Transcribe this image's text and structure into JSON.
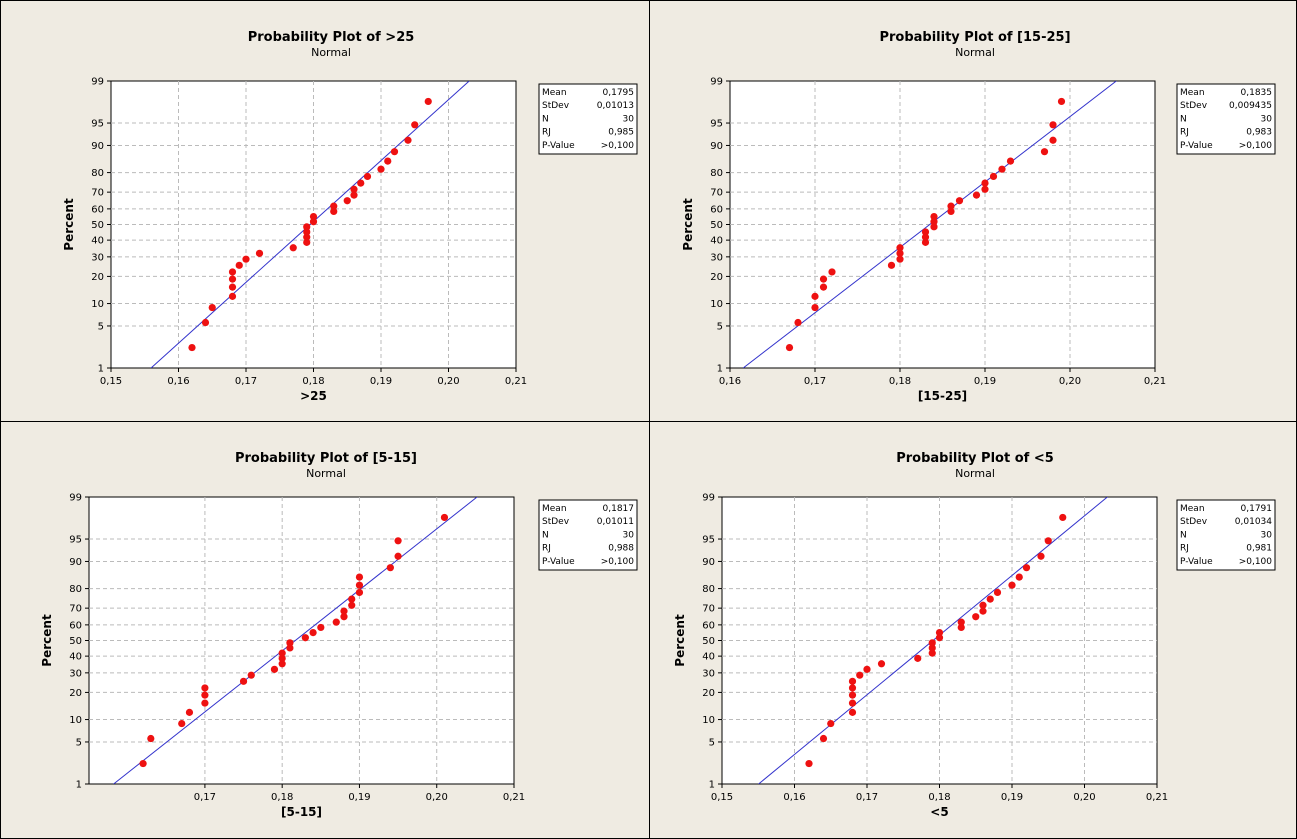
{
  "colors": {
    "panel_bg": "#efebe2",
    "plot_bg": "#ffffff",
    "point": "#ee1111",
    "fit_line": "#3333cc",
    "grid": "#bbbbbb"
  },
  "chart_data": [
    {
      "type": "scatter",
      "title": "Probability Plot of >25",
      "subtitle": "Normal",
      "xlabel": ">25",
      "ylabel": "Percent",
      "xlim": [
        0.15,
        0.21
      ],
      "xticks": [
        "0,15",
        "0,16",
        "0,17",
        "0,18",
        "0,19",
        "0,20",
        "0,21"
      ],
      "yticks": [
        "1",
        "5",
        "10",
        "20",
        "30",
        "40",
        "50",
        "60",
        "70",
        "80",
        "90",
        "95",
        "99"
      ],
      "grid": true,
      "legend_position": "top-right",
      "fit_line": {
        "mean": 0.1795,
        "stdev": 0.01013
      },
      "stats": [
        [
          "Mean",
          "0,1795"
        ],
        [
          "StDev",
          "0,01013"
        ],
        [
          "N",
          "30"
        ],
        [
          "RJ",
          "0,985"
        ],
        [
          "P-Value",
          ">0,100"
        ]
      ],
      "points": [
        [
          0.162,
          2.3
        ],
        [
          0.164,
          5.6
        ],
        [
          0.165,
          8.9
        ],
        [
          0.168,
          12.2
        ],
        [
          0.168,
          15.5
        ],
        [
          0.168,
          18.8
        ],
        [
          0.168,
          22.1
        ],
        [
          0.169,
          25.4
        ],
        [
          0.17,
          28.7
        ],
        [
          0.172,
          32.0
        ],
        [
          0.177,
          35.3
        ],
        [
          0.179,
          38.6
        ],
        [
          0.179,
          41.9
        ],
        [
          0.179,
          45.2
        ],
        [
          0.179,
          48.5
        ],
        [
          0.18,
          51.8
        ],
        [
          0.18,
          55.1
        ],
        [
          0.183,
          58.4
        ],
        [
          0.183,
          61.7
        ],
        [
          0.185,
          65.0
        ],
        [
          0.186,
          68.3
        ],
        [
          0.186,
          71.6
        ],
        [
          0.187,
          74.9
        ],
        [
          0.188,
          78.2
        ],
        [
          0.19,
          81.5
        ],
        [
          0.191,
          84.8
        ],
        [
          0.192,
          88.1
        ],
        [
          0.194,
          91.4
        ],
        [
          0.195,
          94.7
        ],
        [
          0.197,
          97.7
        ]
      ]
    },
    {
      "type": "scatter",
      "title": "Probability Plot of [15-25]",
      "subtitle": "Normal",
      "xlabel": "[15-25]",
      "ylabel": "Percent",
      "xlim": [
        0.16,
        0.21
      ],
      "xticks": [
        "0,16",
        "0,17",
        "0,18",
        "0,19",
        "0,20",
        "0,21"
      ],
      "yticks": [
        "1",
        "5",
        "10",
        "20",
        "30",
        "40",
        "50",
        "60",
        "70",
        "80",
        "90",
        "95",
        "99"
      ],
      "grid": true,
      "legend_position": "top-right",
      "fit_line": {
        "mean": 0.1835,
        "stdev": 0.009435
      },
      "stats": [
        [
          "Mean",
          "0,1835"
        ],
        [
          "StDev",
          "0,009435"
        ],
        [
          "N",
          "30"
        ],
        [
          "RJ",
          "0,983"
        ],
        [
          "P-Value",
          ">0,100"
        ]
      ],
      "points": [
        [
          0.167,
          2.3
        ],
        [
          0.168,
          5.6
        ],
        [
          0.17,
          8.9
        ],
        [
          0.17,
          12.2
        ],
        [
          0.171,
          15.5
        ],
        [
          0.171,
          18.8
        ],
        [
          0.172,
          22.1
        ],
        [
          0.179,
          25.4
        ],
        [
          0.18,
          28.7
        ],
        [
          0.18,
          32.0
        ],
        [
          0.18,
          35.3
        ],
        [
          0.183,
          38.6
        ],
        [
          0.183,
          41.9
        ],
        [
          0.183,
          45.2
        ],
        [
          0.184,
          48.5
        ],
        [
          0.184,
          51.8
        ],
        [
          0.184,
          55.1
        ],
        [
          0.186,
          58.4
        ],
        [
          0.186,
          61.7
        ],
        [
          0.187,
          65.0
        ],
        [
          0.189,
          68.3
        ],
        [
          0.19,
          71.6
        ],
        [
          0.19,
          74.9
        ],
        [
          0.191,
          78.2
        ],
        [
          0.192,
          81.5
        ],
        [
          0.193,
          84.8
        ],
        [
          0.197,
          88.1
        ],
        [
          0.198,
          91.4
        ],
        [
          0.198,
          94.7
        ],
        [
          0.199,
          97.7
        ]
      ]
    },
    {
      "type": "scatter",
      "title": "Probability Plot of [5-15]",
      "subtitle": "Normal",
      "xlabel": "[5-15]",
      "ylabel": "Percent",
      "xlim": [
        0.155,
        0.21
      ],
      "xticks": [
        "0,17",
        "0,18",
        "0,19",
        "0,20",
        "0,21"
      ],
      "yticks": [
        "1",
        "5",
        "10",
        "20",
        "30",
        "40",
        "50",
        "60",
        "70",
        "80",
        "90",
        "95",
        "99"
      ],
      "grid": true,
      "legend_position": "top-right",
      "fit_line": {
        "mean": 0.1817,
        "stdev": 0.01011
      },
      "stats": [
        [
          "Mean",
          "0,1817"
        ],
        [
          "StDev",
          "0,01011"
        ],
        [
          "N",
          "30"
        ],
        [
          "RJ",
          "0,988"
        ],
        [
          "P-Value",
          ">0,100"
        ]
      ],
      "points": [
        [
          0.162,
          2.3
        ],
        [
          0.163,
          5.6
        ],
        [
          0.167,
          8.9
        ],
        [
          0.168,
          12.2
        ],
        [
          0.17,
          15.5
        ],
        [
          0.17,
          18.8
        ],
        [
          0.17,
          22.1
        ],
        [
          0.175,
          25.4
        ],
        [
          0.176,
          28.7
        ],
        [
          0.179,
          32.0
        ],
        [
          0.18,
          35.3
        ],
        [
          0.18,
          38.6
        ],
        [
          0.18,
          41.9
        ],
        [
          0.181,
          45.2
        ],
        [
          0.181,
          48.5
        ],
        [
          0.183,
          51.8
        ],
        [
          0.184,
          55.1
        ],
        [
          0.185,
          58.4
        ],
        [
          0.187,
          61.7
        ],
        [
          0.188,
          65.0
        ],
        [
          0.188,
          68.3
        ],
        [
          0.189,
          71.6
        ],
        [
          0.189,
          74.9
        ],
        [
          0.19,
          78.2
        ],
        [
          0.19,
          81.5
        ],
        [
          0.19,
          84.8
        ],
        [
          0.194,
          88.1
        ],
        [
          0.195,
          91.4
        ],
        [
          0.195,
          94.7
        ],
        [
          0.201,
          97.7
        ]
      ]
    },
    {
      "type": "scatter",
      "title": "Probability Plot of <5",
      "subtitle": "Normal",
      "xlabel": "<5",
      "ylabel": "Percent",
      "xlim": [
        0.15,
        0.21
      ],
      "xticks": [
        "0,15",
        "0,16",
        "0,17",
        "0,18",
        "0,19",
        "0,20",
        "0,21"
      ],
      "yticks": [
        "1",
        "5",
        "10",
        "20",
        "30",
        "40",
        "50",
        "60",
        "70",
        "80",
        "90",
        "95",
        "99"
      ],
      "grid": true,
      "legend_position": "top-right",
      "fit_line": {
        "mean": 0.1791,
        "stdev": 0.01034
      },
      "stats": [
        [
          "Mean",
          "0,1791"
        ],
        [
          "StDev",
          "0,01034"
        ],
        [
          "N",
          "30"
        ],
        [
          "RJ",
          "0,981"
        ],
        [
          "P-Value",
          ">0,100"
        ]
      ],
      "points": [
        [
          0.162,
          2.3
        ],
        [
          0.164,
          5.6
        ],
        [
          0.165,
          8.9
        ],
        [
          0.168,
          12.2
        ],
        [
          0.168,
          15.5
        ],
        [
          0.168,
          18.8
        ],
        [
          0.168,
          22.1
        ],
        [
          0.168,
          25.4
        ],
        [
          0.169,
          28.7
        ],
        [
          0.17,
          32.0
        ],
        [
          0.172,
          35.3
        ],
        [
          0.177,
          38.6
        ],
        [
          0.179,
          41.9
        ],
        [
          0.179,
          45.2
        ],
        [
          0.179,
          48.5
        ],
        [
          0.18,
          51.8
        ],
        [
          0.18,
          55.1
        ],
        [
          0.183,
          58.4
        ],
        [
          0.183,
          61.7
        ],
        [
          0.185,
          65.0
        ],
        [
          0.186,
          68.3
        ],
        [
          0.186,
          71.6
        ],
        [
          0.187,
          74.9
        ],
        [
          0.188,
          78.2
        ],
        [
          0.19,
          81.5
        ],
        [
          0.191,
          84.8
        ],
        [
          0.192,
          88.1
        ],
        [
          0.194,
          91.4
        ],
        [
          0.195,
          94.7
        ],
        [
          0.197,
          97.7
        ]
      ]
    }
  ]
}
